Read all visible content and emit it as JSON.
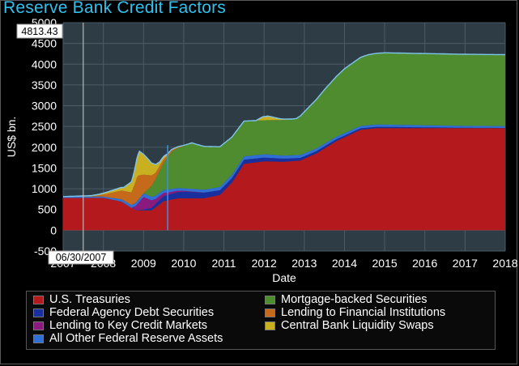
{
  "window": {
    "title": "Reserve Bank Credit Factors"
  },
  "chart_data": {
    "type": "area",
    "stacked": true,
    "title": "Reserve Bank Credit Factors",
    "xlabel": "Date",
    "ylabel": "US$ bn.",
    "xlim": [
      2007.0,
      2018.0
    ],
    "ylim": [
      -500,
      5000
    ],
    "x_ticks": [
      "2007",
      "2008",
      "2009",
      "2010",
      "2011",
      "2012",
      "2013",
      "2014",
      "2015",
      "2016",
      "2017",
      "2018"
    ],
    "y_ticks": [
      "-500",
      "0",
      "500",
      "1000",
      "1500",
      "2000",
      "2500",
      "3000",
      "3500",
      "4000",
      "4500",
      "5000"
    ],
    "cursor": {
      "date": "06/30/2007",
      "x": 2007.5,
      "value": "4813.43"
    },
    "marker_x": 2009.6,
    "grid": true,
    "legend_position": "bottom",
    "series": [
      {
        "name": "U.S. Treasuries",
        "color": "#b3191d",
        "points": [
          [
            2007.0,
            780
          ],
          [
            2008.0,
            780
          ],
          [
            2008.45,
            690
          ],
          [
            2008.8,
            480
          ],
          [
            2009.2,
            480
          ],
          [
            2009.5,
            700
          ],
          [
            2009.85,
            770
          ],
          [
            2010.5,
            770
          ],
          [
            2010.9,
            850
          ],
          [
            2011.2,
            1150
          ],
          [
            2011.5,
            1600
          ],
          [
            2012.0,
            1660
          ],
          [
            2012.5,
            1650
          ],
          [
            2012.9,
            1680
          ],
          [
            2013.3,
            1850
          ],
          [
            2013.8,
            2150
          ],
          [
            2014.4,
            2420
          ],
          [
            2014.8,
            2460
          ],
          [
            2018.0,
            2460
          ]
        ]
      },
      {
        "name": "Federal Agency Debt Securities",
        "color": "#1a2f9e",
        "points": [
          [
            2007.0,
            0
          ],
          [
            2008.8,
            0
          ],
          [
            2009.0,
            20
          ],
          [
            2009.5,
            120
          ],
          [
            2010.0,
            160
          ],
          [
            2011.0,
            110
          ],
          [
            2012.0,
            90
          ],
          [
            2013.0,
            60
          ],
          [
            2014.0,
            40
          ],
          [
            2015.0,
            30
          ],
          [
            2016.0,
            20
          ],
          [
            2017.0,
            8
          ],
          [
            2018.0,
            5
          ]
        ]
      },
      {
        "name": "Lending to Key Credit Markets",
        "color": "#8a1a7e",
        "points": [
          [
            2007.0,
            0
          ],
          [
            2008.7,
            0
          ],
          [
            2008.85,
            150
          ],
          [
            2009.0,
            300
          ],
          [
            2009.3,
            120
          ],
          [
            2009.6,
            60
          ],
          [
            2010.0,
            20
          ],
          [
            2010.6,
            0
          ],
          [
            2018.0,
            0
          ]
        ]
      },
      {
        "name": "All Other Federal Reserve Assets",
        "color": "#2f6fd6",
        "points": [
          [
            2007.0,
            30
          ],
          [
            2008.0,
            30
          ],
          [
            2009.0,
            90
          ],
          [
            2010.0,
            60
          ],
          [
            2011.0,
            80
          ],
          [
            2012.0,
            80
          ],
          [
            2014.0,
            60
          ],
          [
            2016.0,
            50
          ],
          [
            2018.0,
            45
          ]
        ]
      },
      {
        "name": "Mortgage-backed Securities",
        "color": "#4e8c2f",
        "points": [
          [
            2007.0,
            0
          ],
          [
            2009.0,
            0
          ],
          [
            2009.3,
            400
          ],
          [
            2009.7,
            900
          ],
          [
            2010.2,
            1100
          ],
          [
            2011.0,
            950
          ],
          [
            2011.5,
            850
          ],
          [
            2012.0,
            820
          ],
          [
            2012.8,
            880
          ],
          [
            2013.0,
            1000
          ],
          [
            2013.5,
            1300
          ],
          [
            2014.0,
            1550
          ],
          [
            2014.6,
            1700
          ],
          [
            2015.0,
            1730
          ],
          [
            2018.0,
            1720
          ]
        ]
      },
      {
        "name": "Lending to Financial Institutions",
        "color": "#c46a1a",
        "points": [
          [
            2007.0,
            0
          ],
          [
            2007.7,
            5
          ],
          [
            2008.0,
            50
          ],
          [
            2008.2,
            120
          ],
          [
            2008.7,
            300
          ],
          [
            2008.85,
            600
          ],
          [
            2009.0,
            450
          ],
          [
            2009.3,
            150
          ],
          [
            2009.6,
            50
          ],
          [
            2010.0,
            10
          ],
          [
            2010.5,
            0
          ],
          [
            2018.0,
            0
          ]
        ]
      },
      {
        "name": "Central Bank Liquidity Swaps",
        "color": "#c9b020",
        "points": [
          [
            2007.0,
            0
          ],
          [
            2007.9,
            25
          ],
          [
            2008.5,
            80
          ],
          [
            2008.75,
            300
          ],
          [
            2008.9,
            580
          ],
          [
            2009.1,
            400
          ],
          [
            2009.4,
            100
          ],
          [
            2009.7,
            10
          ],
          [
            2010.3,
            0
          ],
          [
            2011.8,
            0
          ],
          [
            2011.95,
            80
          ],
          [
            2012.1,
            100
          ],
          [
            2012.4,
            30
          ],
          [
            2012.7,
            0
          ],
          [
            2018.0,
            0
          ]
        ]
      }
    ]
  }
}
